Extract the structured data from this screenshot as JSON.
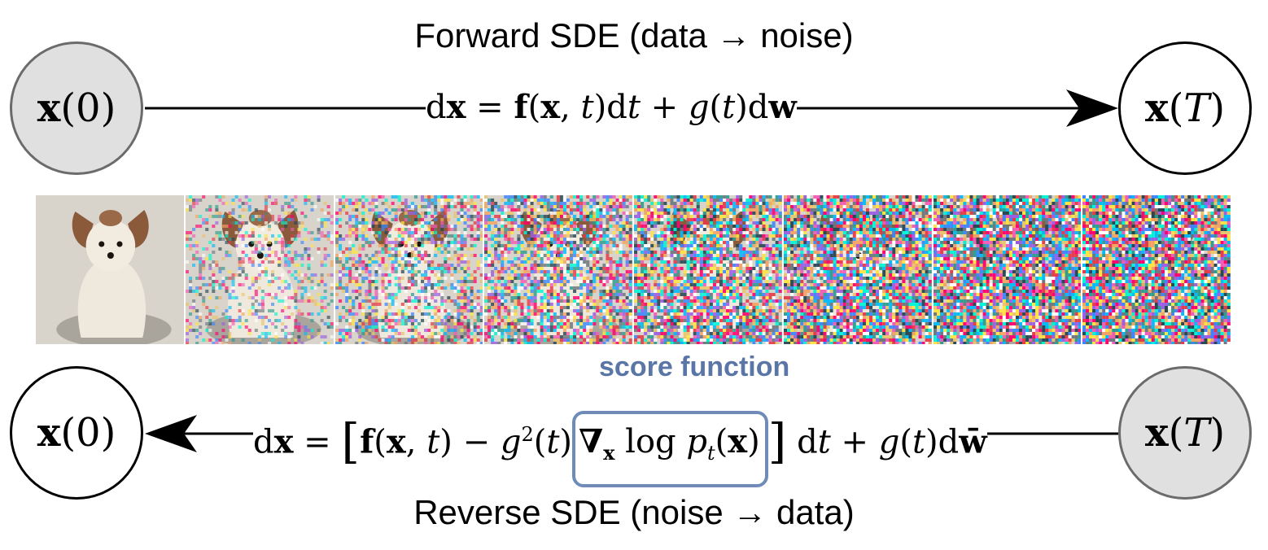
{
  "forward": {
    "title": "Forward SDE (data → noise)",
    "start_node": "x(0)",
    "end_node": "x(T)",
    "equation": "dx = f(x, t)dt + g(t)dw"
  },
  "reverse": {
    "title": "Reverse SDE (noise → data)",
    "start_node": "x(T)",
    "end_node": "x(0)",
    "equation": "dx = [f(x, t) − g²(t)∇ₓ log pₜ(x)] dt + g(t)dw̄",
    "highlight_label": "score function",
    "highlight_term": "∇ₓ log pₜ(x)"
  },
  "frames": [
    {
      "subject": "dog-photo",
      "noise": 0.0
    },
    {
      "subject": "dog-photo",
      "noise": 0.35
    },
    {
      "subject": "dog-photo",
      "noise": 0.55
    },
    {
      "subject": "dog-photo",
      "noise": 0.7
    },
    {
      "subject": "dog-photo",
      "noise": 0.82
    },
    {
      "subject": "dog-photo",
      "noise": 0.9
    },
    {
      "subject": "dog-photo",
      "noise": 0.95
    },
    {
      "subject": "dog-photo",
      "noise": 0.98
    }
  ],
  "colors": {
    "filled_node": "#e0e0e0",
    "score_box": "#6f8cb8",
    "score_label": "#5a76a6"
  }
}
